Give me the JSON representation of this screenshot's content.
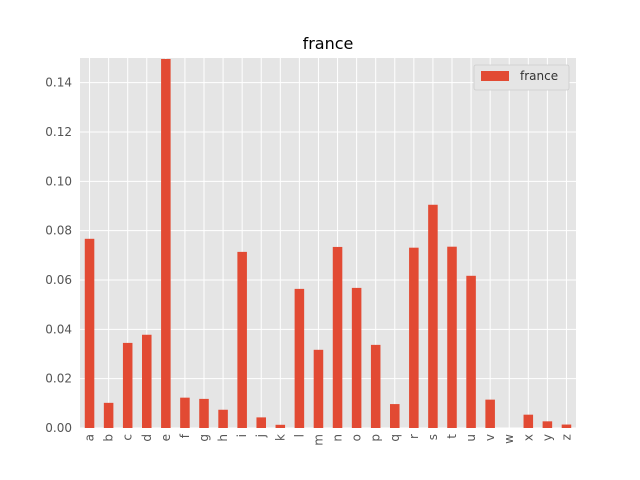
{
  "chart_data": {
    "type": "bar",
    "title": "france",
    "xlabel": "",
    "ylabel": "",
    "categories": [
      "a",
      "b",
      "c",
      "d",
      "e",
      "f",
      "g",
      "h",
      "i",
      "j",
      "k",
      "l",
      "m",
      "n",
      "o",
      "p",
      "q",
      "r",
      "s",
      "t",
      "u",
      "v",
      "w",
      "x",
      "y",
      "z"
    ],
    "series": [
      {
        "name": "france",
        "color": "#e24a33",
        "values": [
          0.0767,
          0.0102,
          0.0345,
          0.0378,
          0.1496,
          0.0123,
          0.0118,
          0.0074,
          0.0714,
          0.0043,
          0.0013,
          0.0564,
          0.0317,
          0.0734,
          0.0568,
          0.0337,
          0.0097,
          0.0731,
          0.0905,
          0.0735,
          0.0617,
          0.0115,
          0.0,
          0.0054,
          0.0027,
          0.0014
        ]
      }
    ],
    "ylim": [
      0,
      0.15
    ],
    "yticks": [
      "0.00",
      "0.02",
      "0.04",
      "0.06",
      "0.08",
      "0.10",
      "0.12",
      "0.14"
    ],
    "grid": true,
    "legend_position": "top-right",
    "style": {
      "plot_background": "#e5e5e5",
      "grid_color": "#ffffff"
    }
  }
}
